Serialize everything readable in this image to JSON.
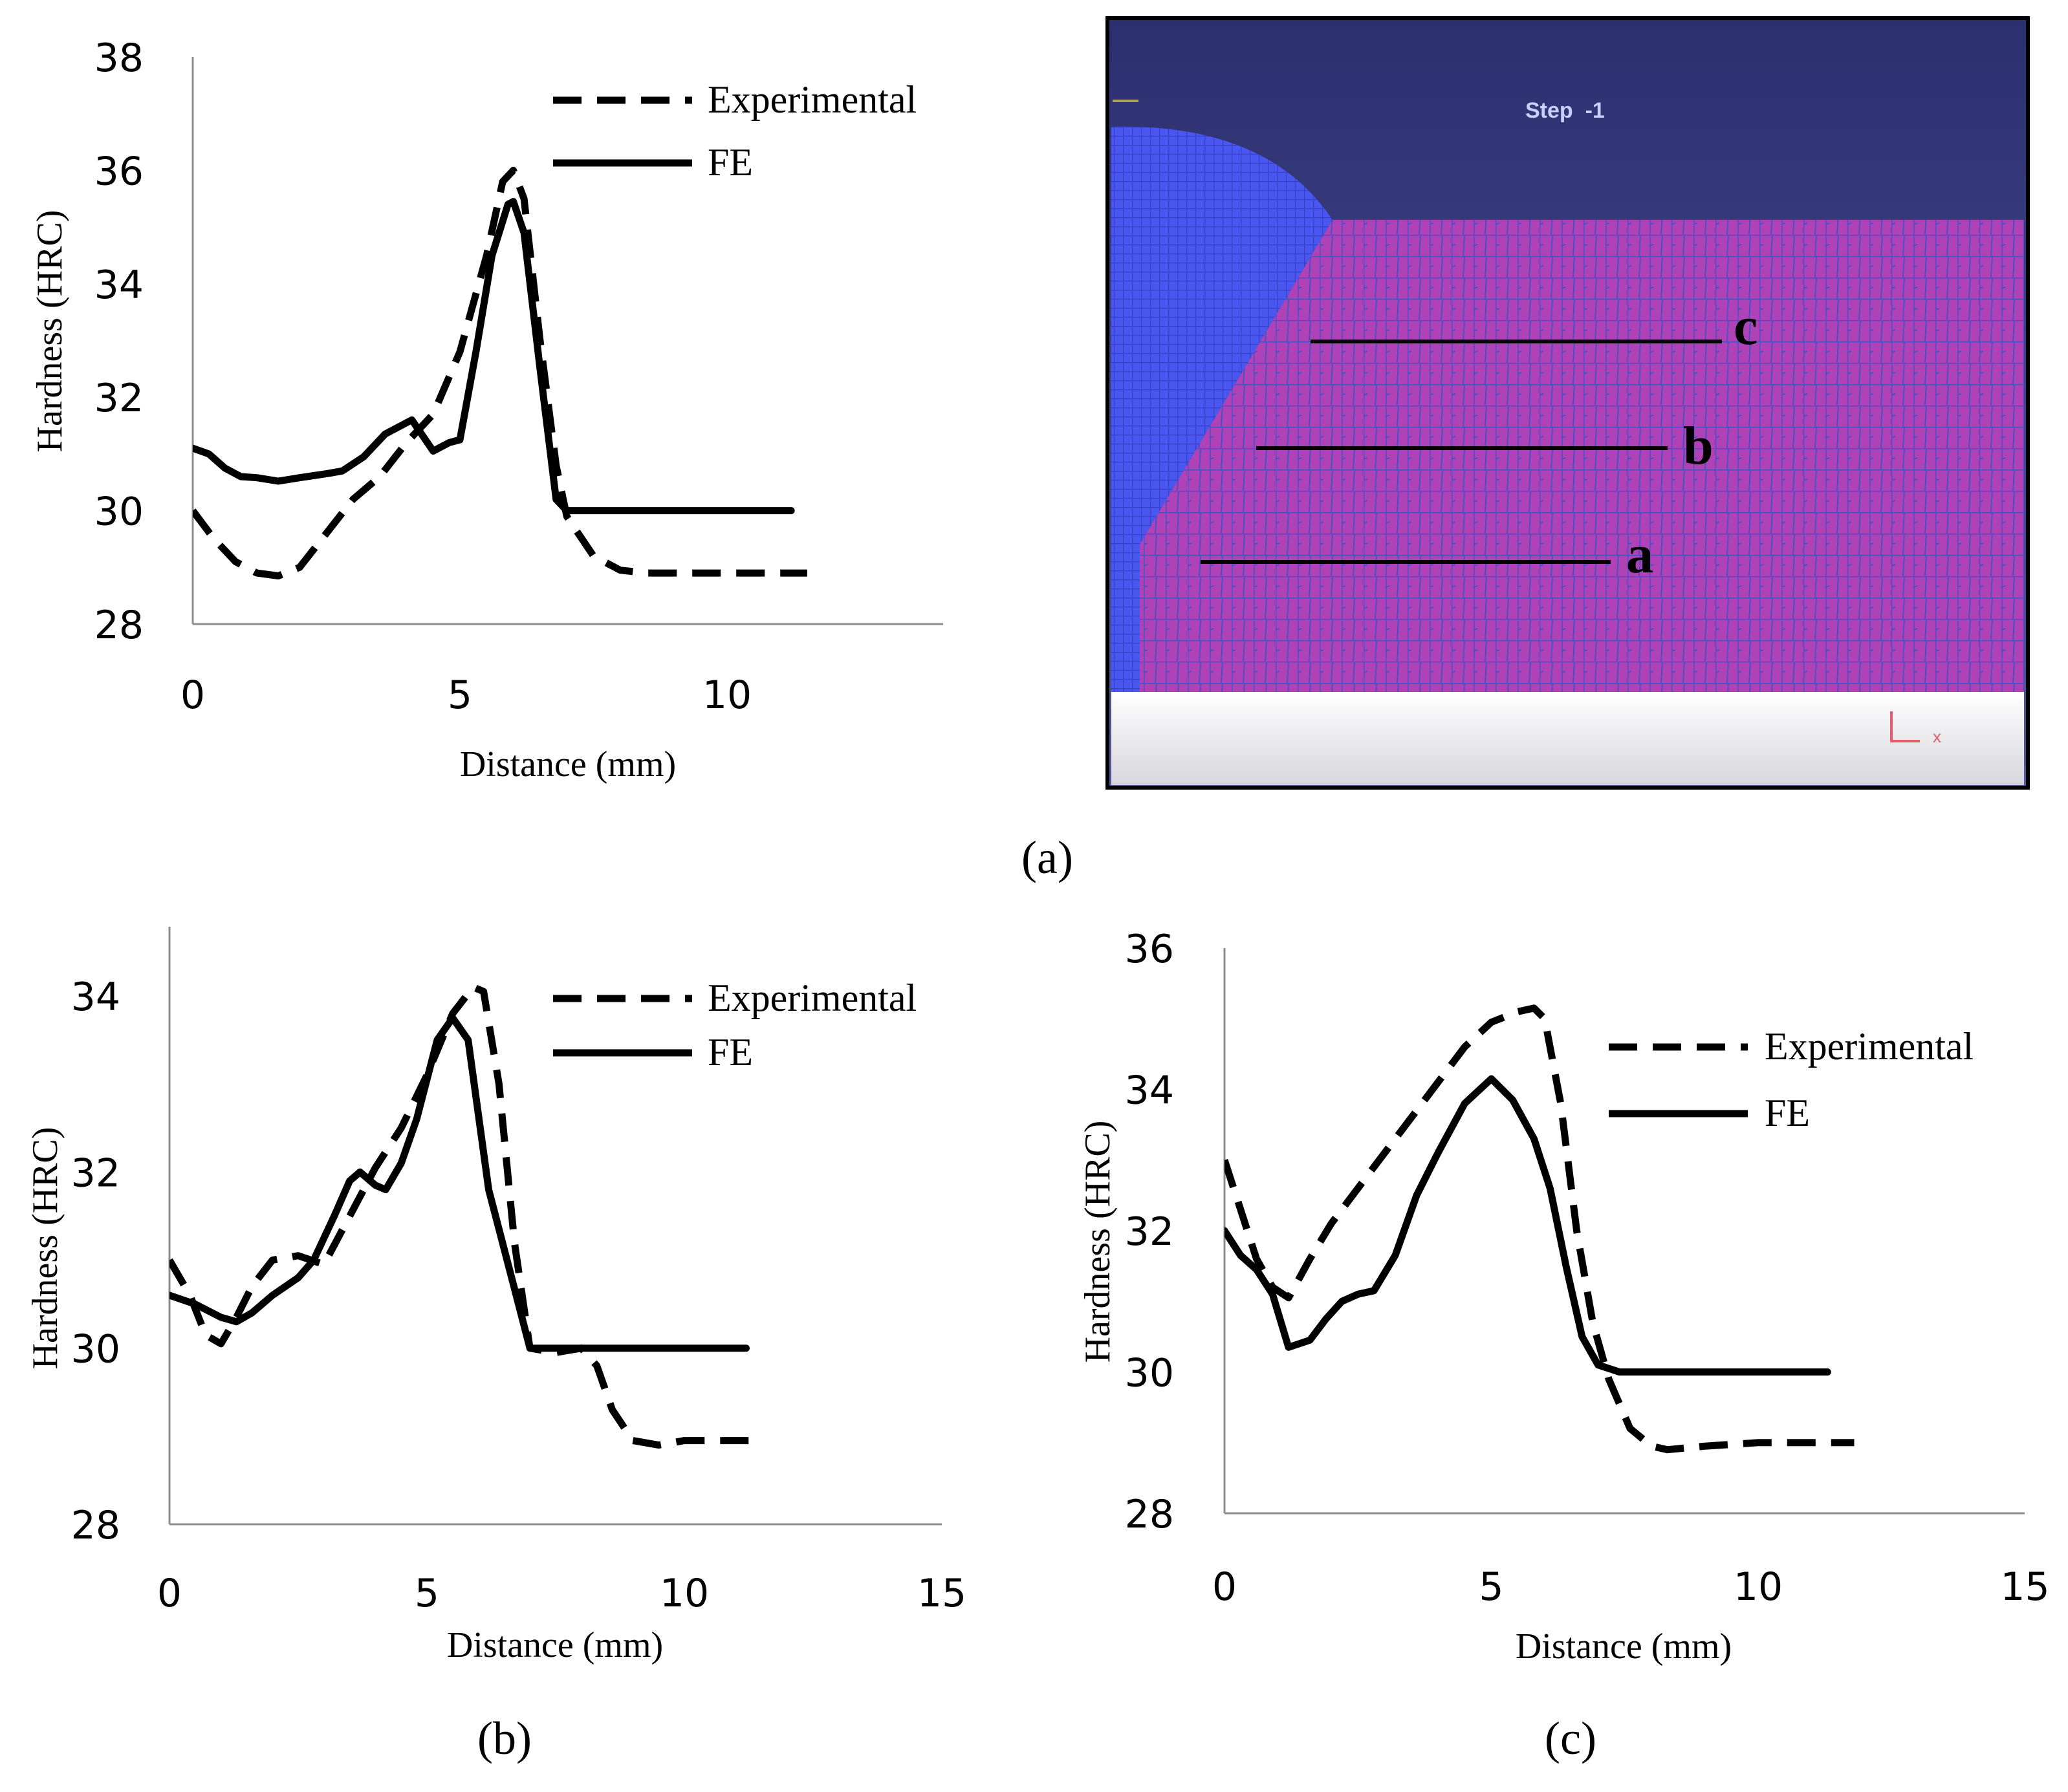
{
  "chart_data": [
    {
      "id": "a",
      "type": "line",
      "title": "",
      "caption": "(a)",
      "xlabel": "Distance (mm)",
      "ylabel": "Hardness (HRC)",
      "xlim": [
        0,
        14
      ],
      "ylim": [
        28,
        38
      ],
      "xticks": [
        "0",
        "5",
        "10"
      ],
      "yticks": [
        "28",
        "30",
        "32",
        "34",
        "36",
        "38"
      ],
      "grid": false,
      "legend": "top-right",
      "series": [
        {
          "name": "Experimental",
          "style": "dashed",
          "x": [
            0,
            0.4,
            0.8,
            1.2,
            1.6,
            2.0,
            2.5,
            3.0,
            3.5,
            4.0,
            4.5,
            5.0,
            5.5,
            5.8,
            6.0,
            6.2,
            6.5,
            6.8,
            7.0,
            7.5,
            8.0,
            8.5,
            9.0,
            10.0,
            11.5
          ],
          "y": [
            30.0,
            29.5,
            29.1,
            28.9,
            28.85,
            29.0,
            29.6,
            30.2,
            30.6,
            31.2,
            31.7,
            32.8,
            34.5,
            35.8,
            36.0,
            35.5,
            33.0,
            30.8,
            29.9,
            29.2,
            28.95,
            28.9,
            28.9,
            28.9,
            28.9
          ]
        },
        {
          "name": "FE",
          "style": "solid",
          "x": [
            0,
            0.3,
            0.6,
            0.9,
            1.2,
            1.6,
            2.0,
            2.5,
            2.8,
            3.2,
            3.6,
            4.1,
            4.5,
            4.8,
            5.0,
            5.3,
            5.6,
            5.9,
            6.0,
            6.2,
            6.5,
            6.8,
            7.0,
            8.0,
            9.0,
            10.0,
            11.2
          ],
          "y": [
            31.1,
            31.0,
            30.75,
            30.6,
            30.58,
            30.52,
            30.58,
            30.65,
            30.7,
            30.95,
            31.35,
            31.6,
            31.05,
            31.2,
            31.25,
            32.8,
            34.5,
            35.4,
            35.45,
            34.9,
            32.5,
            30.2,
            30.0,
            30.0,
            30.0,
            30.0,
            30.0
          ]
        }
      ]
    },
    {
      "id": "b",
      "type": "line",
      "title": "",
      "caption": "(b)",
      "xlabel": "Distance (mm)",
      "ylabel": "Hardness (HRC)",
      "xlim": [
        0,
        15
      ],
      "ylim": [
        28,
        35
      ],
      "xticks": [
        "0",
        "5",
        "10",
        "15"
      ],
      "yticks": [
        "28",
        "30",
        "32",
        "34"
      ],
      "grid": false,
      "legend": "top-right",
      "series": [
        {
          "name": "Experimental",
          "style": "dashed",
          "x": [
            0,
            0.4,
            0.7,
            1.0,
            1.3,
            1.6,
            2.0,
            2.5,
            3.0,
            3.5,
            4.0,
            4.5,
            5.0,
            5.5,
            5.9,
            6.1,
            6.4,
            6.7,
            7.0,
            7.5,
            8.0,
            8.3,
            8.6,
            9.0,
            9.5,
            10.0,
            11.5
          ],
          "y": [
            31.0,
            30.6,
            30.15,
            30.05,
            30.35,
            30.7,
            31.0,
            31.05,
            30.95,
            31.5,
            32.05,
            32.5,
            33.1,
            33.8,
            34.1,
            34.05,
            33.0,
            31.2,
            30.0,
            29.95,
            30.0,
            29.8,
            29.3,
            28.95,
            28.9,
            28.95,
            28.95
          ]
        },
        {
          "name": "FE",
          "style": "solid",
          "x": [
            0,
            0.5,
            1.0,
            1.3,
            1.6,
            2.0,
            2.5,
            2.8,
            3.2,
            3.5,
            3.7,
            4.0,
            4.2,
            4.5,
            4.8,
            5.2,
            5.5,
            5.8,
            6.2,
            6.6,
            7.0,
            7.5,
            8.5,
            10.0,
            11.2
          ],
          "y": [
            30.6,
            30.5,
            30.35,
            30.3,
            30.4,
            30.6,
            30.8,
            31.0,
            31.5,
            31.9,
            32.0,
            31.85,
            31.8,
            32.1,
            32.6,
            33.5,
            33.75,
            33.5,
            31.8,
            30.9,
            30.0,
            30.0,
            30.0,
            30.0,
            30.0
          ]
        }
      ]
    },
    {
      "id": "c",
      "type": "line",
      "title": "",
      "caption": "(c)",
      "xlabel": "Distance (mm)",
      "ylabel": "Hardness (HRC)",
      "xlim": [
        0,
        15
      ],
      "ylim": [
        28,
        36
      ],
      "xticks": [
        "0",
        "5",
        "10",
        "15"
      ],
      "yticks": [
        "28",
        "30",
        "32",
        "34",
        "36"
      ],
      "grid": false,
      "legend": "top-right",
      "series": [
        {
          "name": "Experimental",
          "style": "dashed",
          "x": [
            0,
            0.3,
            0.6,
            0.9,
            1.2,
            1.6,
            2.0,
            2.5,
            3.0,
            3.5,
            4.0,
            4.5,
            5.0,
            5.5,
            5.8,
            6.0,
            6.3,
            6.6,
            6.9,
            7.2,
            7.6,
            8.0,
            8.3,
            9.0,
            10.0,
            11.8
          ],
          "y": [
            33.0,
            32.3,
            31.6,
            31.2,
            31.05,
            31.6,
            32.1,
            32.6,
            33.1,
            33.6,
            34.1,
            34.6,
            34.95,
            35.1,
            35.15,
            35.0,
            33.8,
            32.0,
            30.7,
            29.9,
            29.2,
            28.95,
            28.9,
            28.95,
            29.0,
            29.0
          ]
        },
        {
          "name": "FE",
          "style": "solid",
          "x": [
            0,
            0.3,
            0.6,
            0.9,
            1.2,
            1.6,
            1.9,
            2.2,
            2.5,
            2.8,
            3.2,
            3.6,
            4.0,
            4.5,
            5.0,
            5.4,
            5.8,
            6.1,
            6.4,
            6.7,
            7.0,
            7.4,
            8.0,
            9.0,
            10.0,
            11.3
          ],
          "y": [
            32.0,
            31.65,
            31.45,
            31.1,
            30.35,
            30.45,
            30.75,
            31.0,
            31.1,
            31.15,
            31.65,
            32.5,
            33.1,
            33.8,
            34.15,
            33.85,
            33.3,
            32.6,
            31.5,
            30.5,
            30.1,
            30.0,
            30.0,
            30.0,
            30.0,
            30.0
          ]
        }
      ]
    }
  ],
  "fe_mesh": {
    "step_label": "Step  -1",
    "line_labels": [
      "c",
      "b",
      "a"
    ],
    "axis_label": "x",
    "colors": {
      "background_top": "#2b2f6e",
      "background_bottom": "#4c5098",
      "tool": "#4a56f0",
      "workpiece": "#b042b8",
      "mesh_line": "#5050c8",
      "ground": "#e8e8ec",
      "triad": "#e06070"
    }
  },
  "captions": {
    "a": "(a)",
    "b": "(b)",
    "c": "(c)"
  }
}
